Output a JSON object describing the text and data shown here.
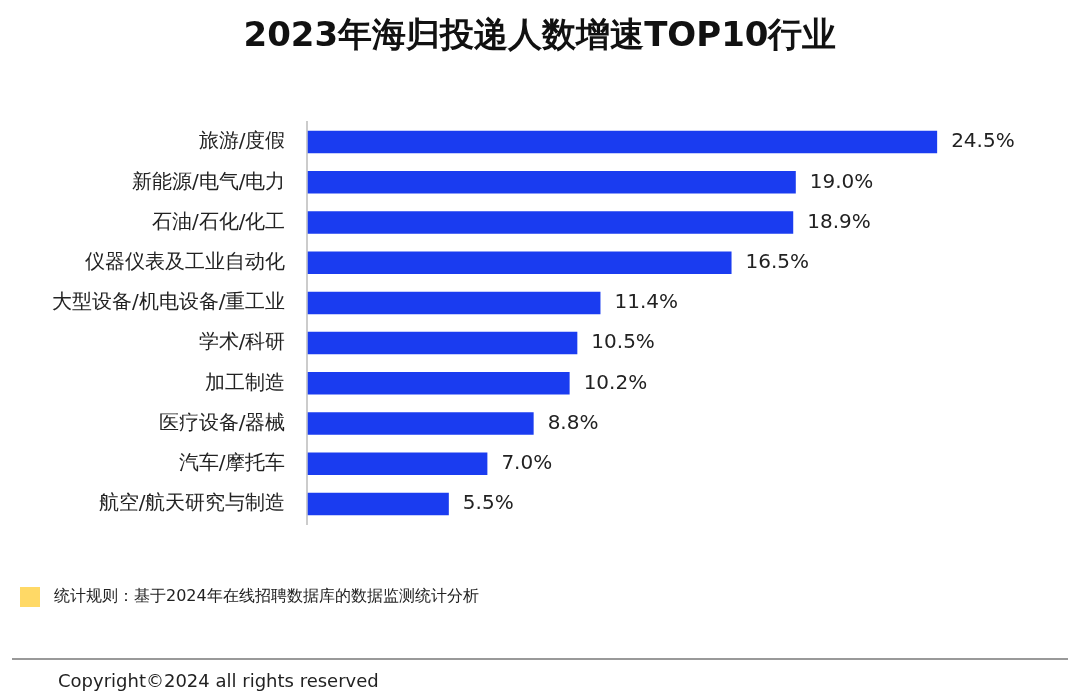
{
  "chart_data": {
    "type": "bar",
    "orientation": "horizontal",
    "title": "2023年海归投递人数增速TOP10行业",
    "categories": [
      "旅游/度假",
      "新能源/电气/电力",
      "石油/石化/化工",
      "仪器仪表及工业自动化",
      "大型设备/机电设备/重工业",
      "学术/科研",
      "加工制造",
      "医疗设备/器械",
      "汽车/摩托车",
      "航空/航天研究与制造"
    ],
    "values": [
      24.5,
      19.0,
      18.9,
      16.5,
      11.4,
      10.5,
      10.2,
      8.8,
      7.0,
      5.5
    ],
    "value_labels": [
      "24.5%",
      "19.0%",
      "18.9%",
      "16.5%",
      "11.4%",
      "10.5%",
      "10.2%",
      "8.8%",
      "7.0%",
      "5.5%"
    ],
    "color": "#1a3cf0",
    "annotations": [
      "统计规则：基于2024年在线招聘数据库的数据监测统计分析",
      "Copyright©2024 all rights reserved"
    ]
  }
}
